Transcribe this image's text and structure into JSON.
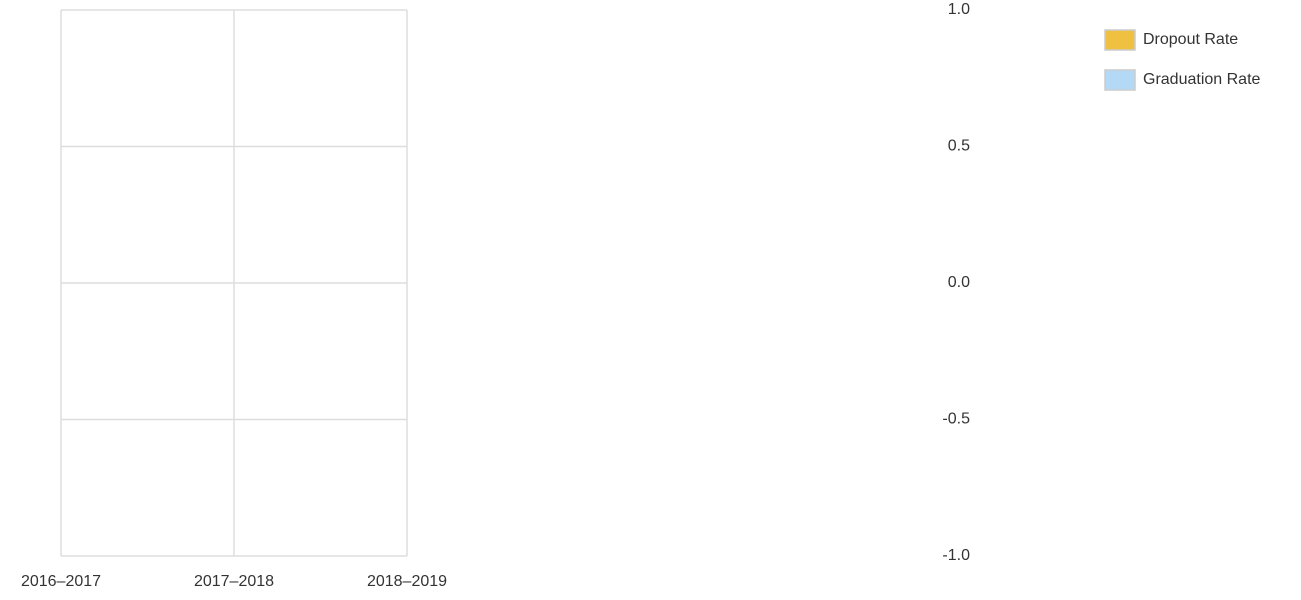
{
  "chart_data": {
    "type": "bar",
    "categories": [
      "2016–2017",
      "2017–2018",
      "2018–2019"
    ],
    "series": [
      {
        "name": "Dropout Rate",
        "color": "#f0c040",
        "values": [
          null,
          null,
          null
        ]
      },
      {
        "name": "Graduation Rate",
        "color": "#b3d9f7",
        "values": [
          null,
          null,
          null
        ]
      }
    ],
    "ylim": [
      -1,
      1
    ],
    "yticks": [
      {
        "value": -1,
        "label": "-1.0"
      },
      -0.5,
      {
        "value": 0,
        "label": "0.0"
      },
      0.5,
      {
        "value": 1,
        "label": "1.0"
      }
    ],
    "grid": true,
    "legend": "top-right"
  }
}
